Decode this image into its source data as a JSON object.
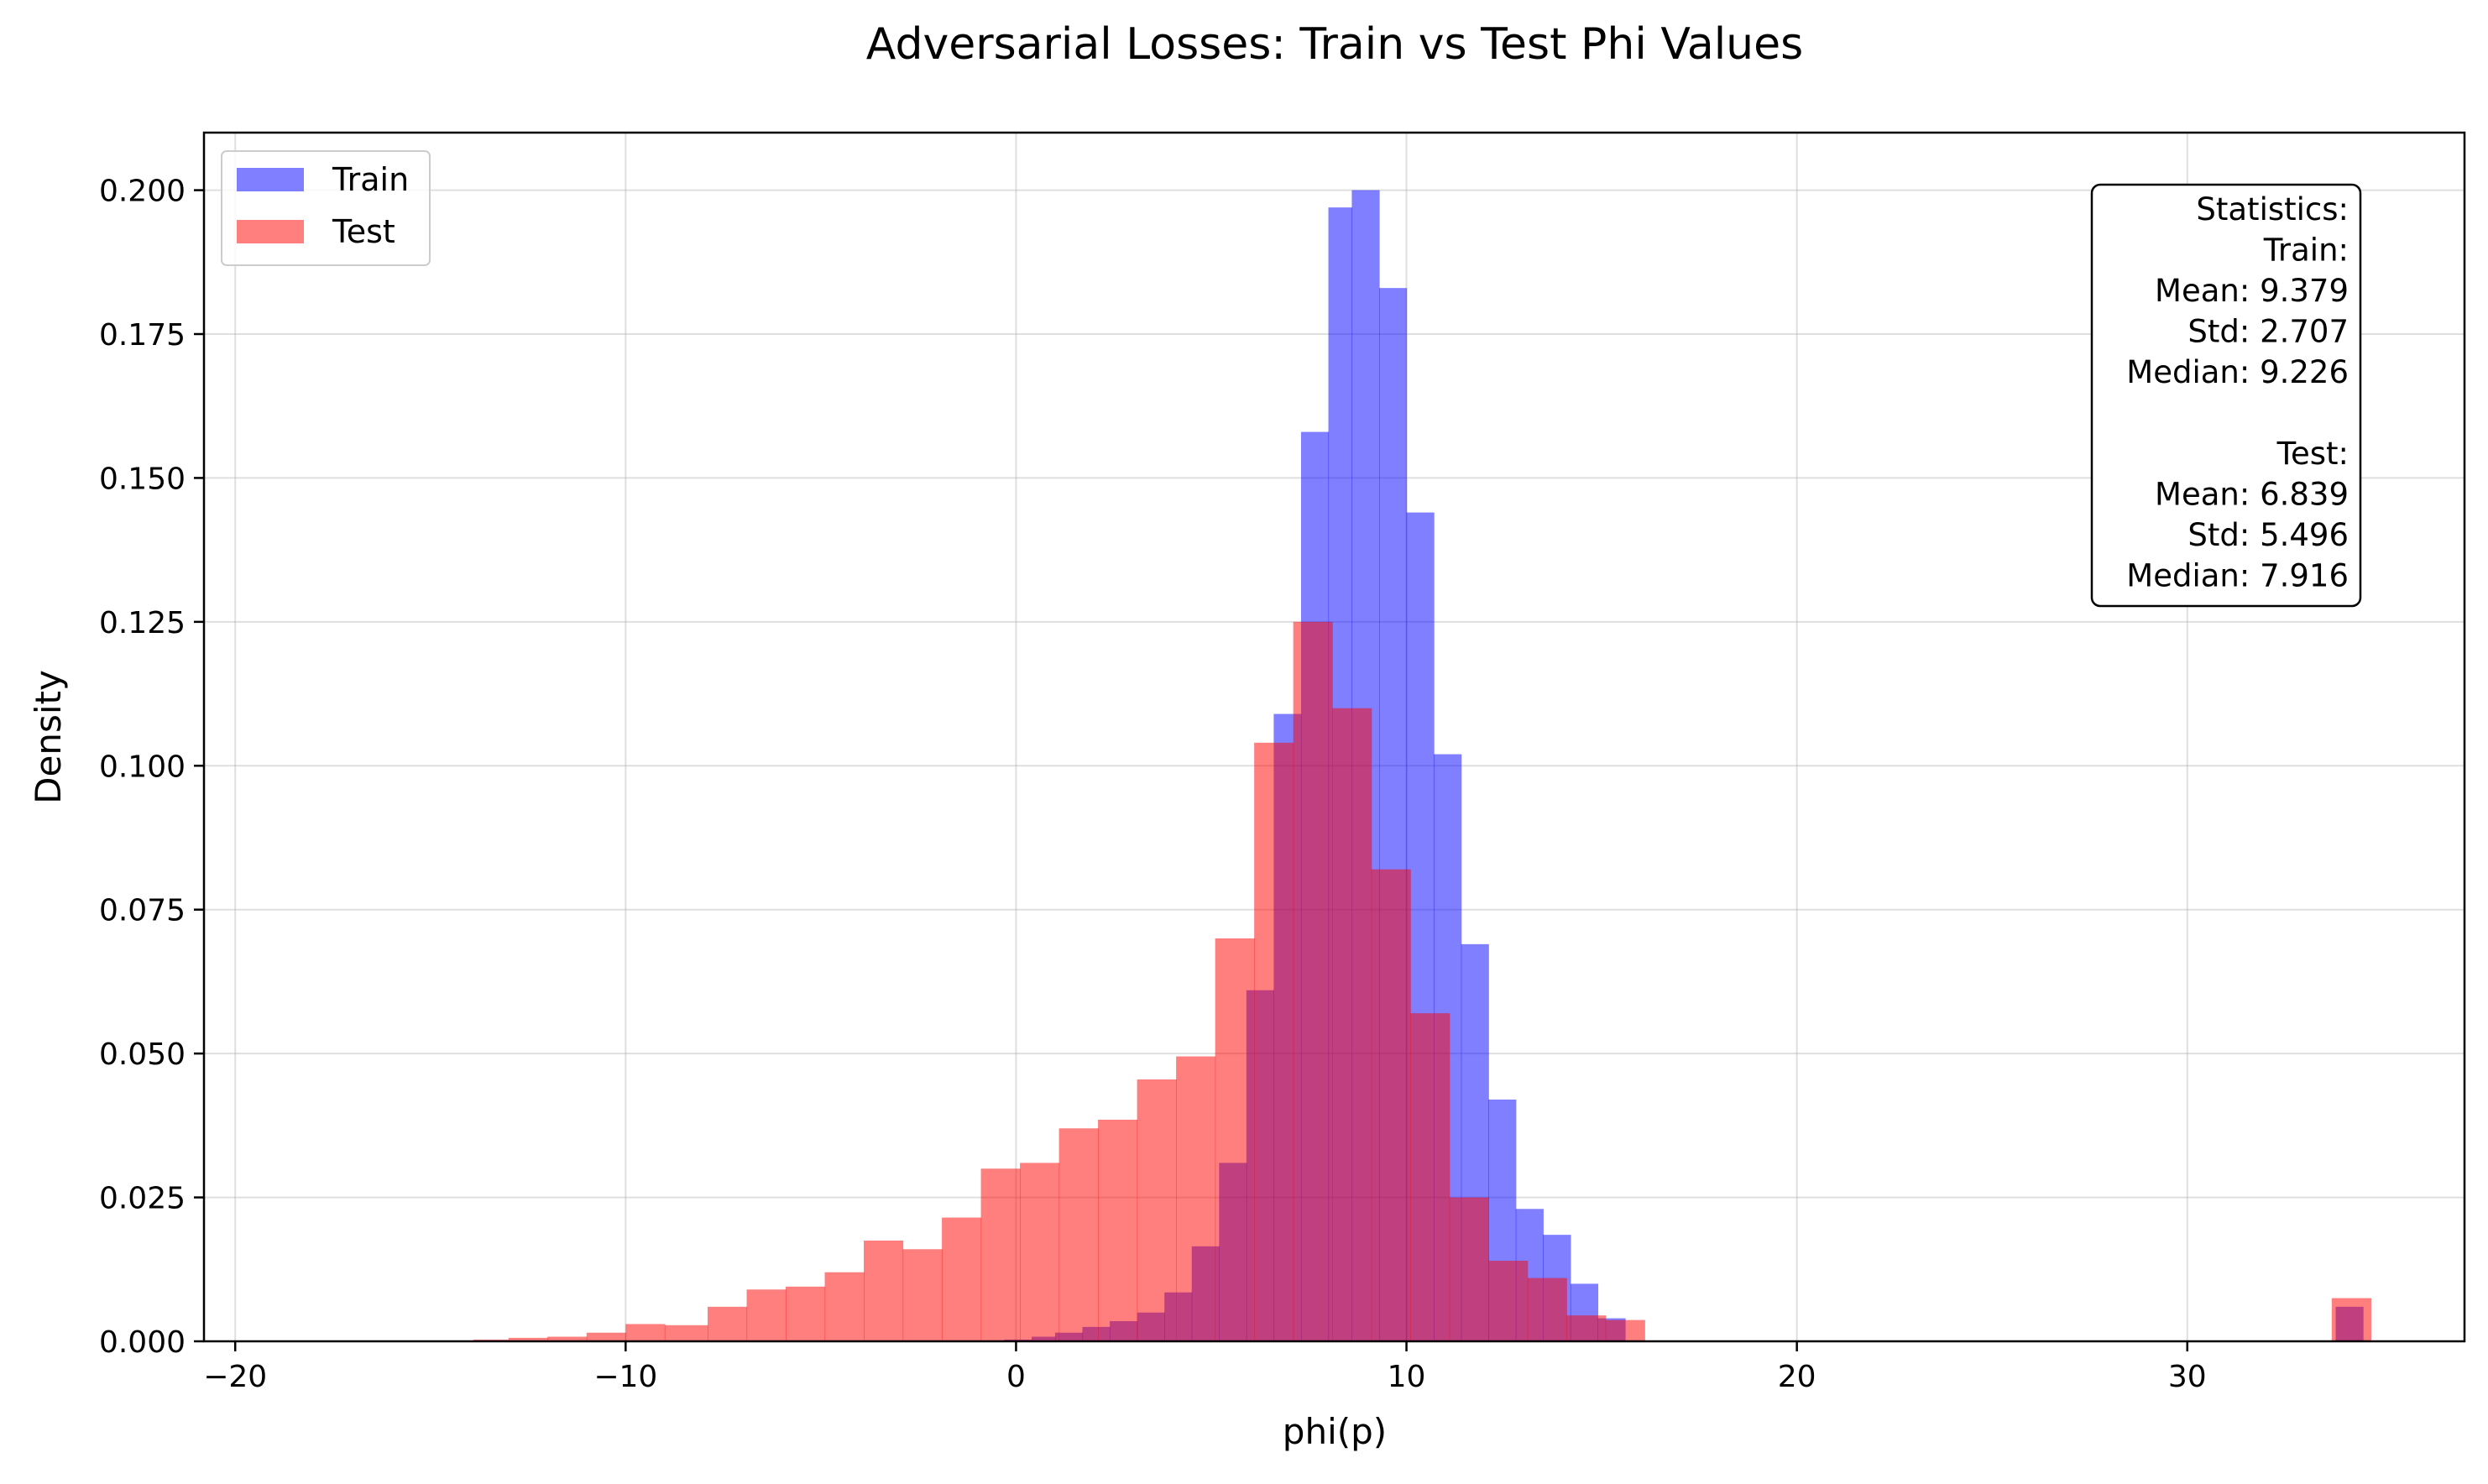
{
  "chart_data": {
    "type": "histogram",
    "title": "Adversarial Losses: Train vs Test Phi Values",
    "xlabel": "phi(p)",
    "ylabel": "Density",
    "xlim": [
      -20.8,
      37.1
    ],
    "ylim": [
      0,
      0.21
    ],
    "xticks": [
      -20,
      -10,
      0,
      10,
      20,
      30
    ],
    "xtick_labels": [
      "−20",
      "−10",
      "0",
      "10",
      "20",
      "30"
    ],
    "yticks": [
      0,
      0.025,
      0.05,
      0.075,
      0.1,
      0.125,
      0.15,
      0.175,
      0.2
    ],
    "ytick_labels": [
      "0.000",
      "0.025",
      "0.050",
      "0.075",
      "0.100",
      "0.125",
      "0.150",
      "0.175",
      "0.200"
    ],
    "grid": true,
    "legend_position": "top-left",
    "series": [
      {
        "name": "Train",
        "color": "#0000ff",
        "opacity": 0.5,
        "bins": [
          [
            -0.3,
            0.4,
            0.0003
          ],
          [
            0.4,
            1.0,
            0.0008
          ],
          [
            1.0,
            1.7,
            0.0015
          ],
          [
            1.7,
            2.4,
            0.0025
          ],
          [
            2.4,
            3.1,
            0.0035
          ],
          [
            3.1,
            3.8,
            0.005
          ],
          [
            3.8,
            4.5,
            0.0085
          ],
          [
            4.5,
            5.2,
            0.0165
          ],
          [
            5.2,
            5.9,
            0.031
          ],
          [
            5.9,
            6.6,
            0.061
          ],
          [
            6.6,
            7.3,
            0.109
          ],
          [
            7.3,
            8.0,
            0.158
          ],
          [
            8.0,
            8.6,
            0.197
          ],
          [
            8.6,
            9.3,
            0.2
          ],
          [
            9.3,
            10.0,
            0.183
          ],
          [
            10.0,
            10.7,
            0.144
          ],
          [
            10.7,
            11.4,
            0.102
          ],
          [
            11.4,
            12.1,
            0.069
          ],
          [
            12.1,
            12.8,
            0.042
          ],
          [
            12.8,
            13.5,
            0.023
          ],
          [
            13.5,
            14.2,
            0.0185
          ],
          [
            14.2,
            14.9,
            0.01
          ],
          [
            14.9,
            15.6,
            0.004
          ],
          [
            33.8,
            34.5,
            0.006
          ]
        ]
      },
      {
        "name": "Test",
        "color": "#ff0000",
        "opacity": 0.5,
        "bins": [
          [
            -13.9,
            -13.0,
            0.0003
          ],
          [
            -13.0,
            -12.0,
            0.0006
          ],
          [
            -12.0,
            -11.0,
            0.0008
          ],
          [
            -11.0,
            -10.0,
            0.0015
          ],
          [
            -10.0,
            -9.0,
            0.003
          ],
          [
            -9.0,
            -7.9,
            0.0028
          ],
          [
            -7.9,
            -6.9,
            0.006
          ],
          [
            -6.9,
            -5.9,
            0.009
          ],
          [
            -5.9,
            -4.9,
            0.0095
          ],
          [
            -4.9,
            -3.9,
            0.012
          ],
          [
            -3.9,
            -2.9,
            0.0175
          ],
          [
            -2.9,
            -1.9,
            0.016
          ],
          [
            -1.9,
            -0.9,
            0.0215
          ],
          [
            -0.9,
            0.1,
            0.03
          ],
          [
            0.1,
            1.1,
            0.031
          ],
          [
            1.1,
            2.1,
            0.037
          ],
          [
            2.1,
            3.1,
            0.0385
          ],
          [
            3.1,
            4.1,
            0.0455
          ],
          [
            4.1,
            5.1,
            0.0495
          ],
          [
            5.1,
            6.1,
            0.07
          ],
          [
            6.1,
            7.1,
            0.104
          ],
          [
            7.1,
            8.1,
            0.125
          ],
          [
            8.1,
            9.1,
            0.11
          ],
          [
            9.1,
            10.1,
            0.082
          ],
          [
            10.1,
            11.1,
            0.057
          ],
          [
            11.1,
            12.1,
            0.025
          ],
          [
            12.1,
            13.1,
            0.014
          ],
          [
            13.1,
            14.1,
            0.011
          ],
          [
            14.1,
            15.1,
            0.0045
          ],
          [
            15.1,
            16.1,
            0.0037
          ],
          [
            33.7,
            34.7,
            0.0075
          ]
        ]
      }
    ],
    "statistics_box": [
      "Statistics:",
      "Train:",
      "Mean: 9.379",
      "Std: 2.707",
      "Median: 9.226",
      "",
      "Test:",
      "Mean: 6.839",
      "Std: 5.496",
      "Median: 7.916"
    ]
  }
}
